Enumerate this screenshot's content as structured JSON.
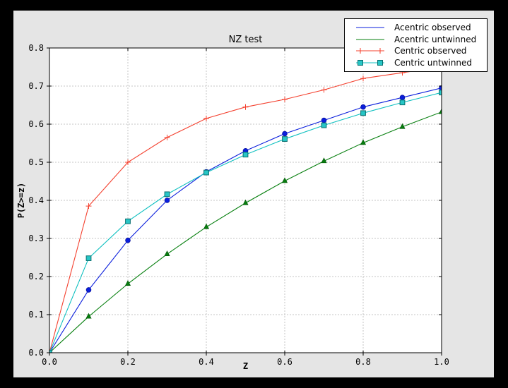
{
  "figure": {
    "background": "#e5e5e5",
    "plot_background": "#ffffff",
    "outer_background": "#000000",
    "spine_color": "#000000"
  },
  "chart_data": {
    "type": "line",
    "title": "NZ test",
    "xlabel": "Z",
    "ylabel": "P(Z>=z)",
    "xlim": [
      0.0,
      1.0
    ],
    "ylim": [
      0.0,
      0.8
    ],
    "xticks": [
      0.0,
      0.2,
      0.4,
      0.6,
      0.8,
      1.0
    ],
    "yticks": [
      0.0,
      0.1,
      0.2,
      0.3,
      0.4,
      0.5,
      0.6,
      0.7,
      0.8
    ],
    "grid": true,
    "grid_color": "#c4c4c4",
    "legend_position": "upper right",
    "x": [
      0.0,
      0.1,
      0.2,
      0.3,
      0.4,
      0.5,
      0.6,
      0.7,
      0.8,
      0.9,
      1.0
    ],
    "series": [
      {
        "name": "Acentric observed",
        "color": "#0a1edc",
        "marker": "circle",
        "marker_face": "#0a1edc",
        "marker_edge": "#0a14a0",
        "legend_markers": 0,
        "values": [
          0.0,
          0.165,
          0.295,
          0.4,
          0.475,
          0.53,
          0.575,
          0.61,
          0.645,
          0.67,
          0.695
        ]
      },
      {
        "name": "Acentric untwinned",
        "color": "#067f0e",
        "marker": "triangle",
        "marker_face": "#067f0e",
        "marker_edge": "#055c0a",
        "legend_markers": 0,
        "values": [
          0.0,
          0.095,
          0.181,
          0.259,
          0.33,
          0.393,
          0.451,
          0.503,
          0.551,
          0.593,
          0.632
        ]
      },
      {
        "name": "Centric observed",
        "color": "#f4402e",
        "marker": "plus",
        "marker_face": "#f4402e",
        "marker_edge": "#f4402e",
        "legend_markers": 2,
        "values": [
          0.0,
          0.385,
          0.5,
          0.565,
          0.615,
          0.645,
          0.665,
          0.69,
          0.72,
          0.735,
          0.75
        ]
      },
      {
        "name": "Centric untwinned",
        "color": "#10c0c0",
        "marker": "square",
        "marker_face": "#27c6c6",
        "marker_edge": "#0a7070",
        "legend_markers": 2,
        "values": [
          0.0,
          0.248,
          0.345,
          0.416,
          0.473,
          0.52,
          0.561,
          0.597,
          0.629,
          0.657,
          0.683
        ]
      }
    ]
  }
}
